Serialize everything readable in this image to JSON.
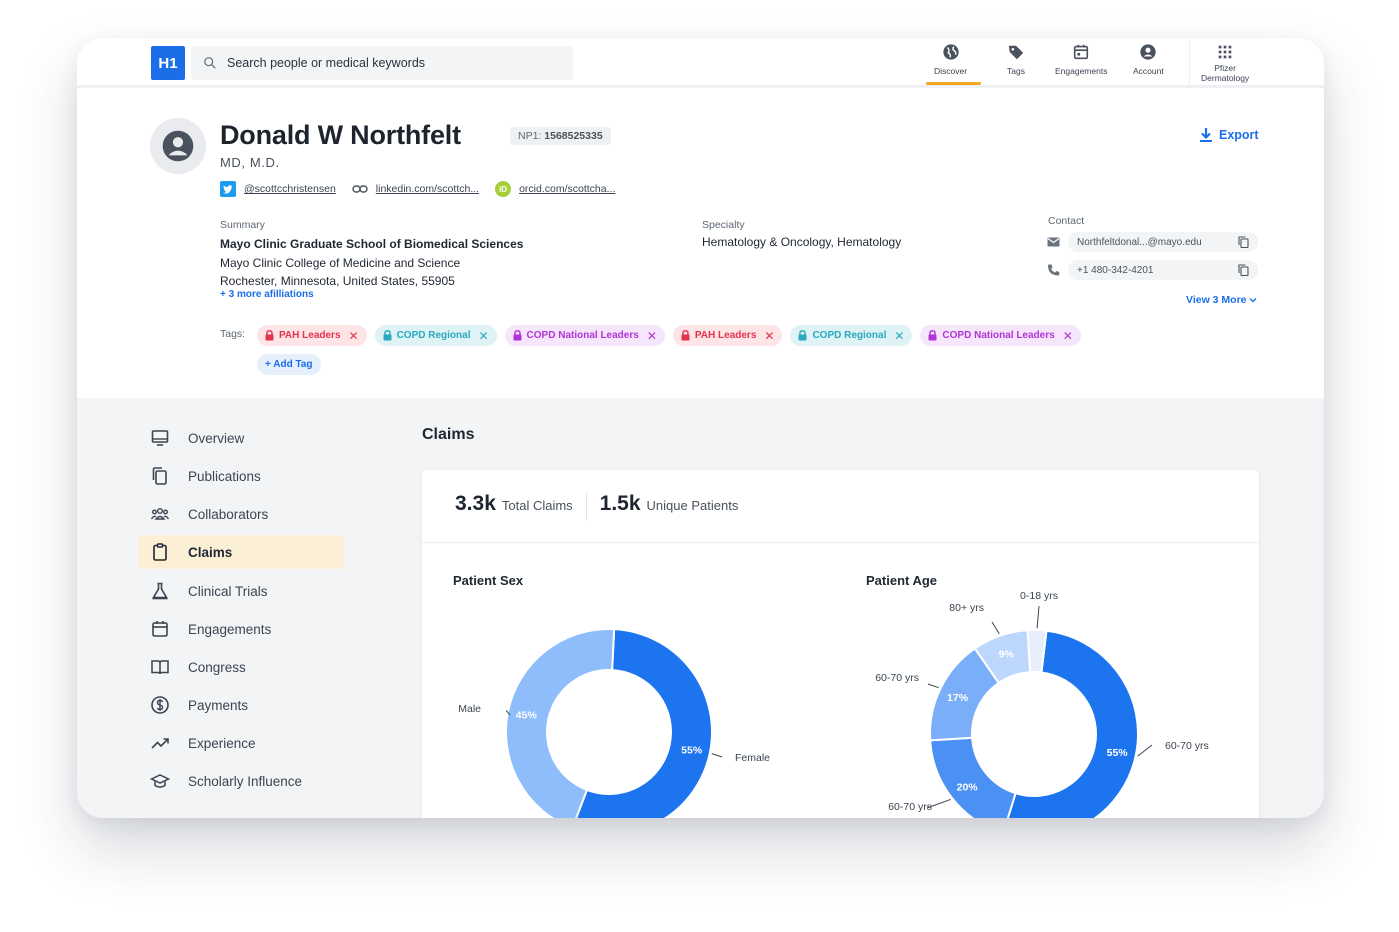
{
  "topbar": {
    "logo": "H1",
    "search_placeholder": "Search people or medical keywords",
    "nav": [
      {
        "label": "Discover",
        "icon": "globe-icon"
      },
      {
        "label": "Tags",
        "icon": "tag-icon"
      },
      {
        "label": "Engagements",
        "icon": "calendar-icon"
      },
      {
        "label": "Account",
        "icon": "account-icon"
      },
      {
        "label_line1": "Pfizer",
        "label_line2": "Dermatology",
        "icon": "apps-grid-icon"
      }
    ]
  },
  "profile": {
    "name": "Donald W Northfelt",
    "npi_prefix": "NP1:",
    "npi": "1568525335",
    "degree": "MD, M.D.",
    "export_label": "Export",
    "twitter": "@scottcchristensen",
    "linkedin": "linkedin.com/scottch...",
    "orcid": "orcid.com/scottcha...",
    "orcid_badge": "iD",
    "summary_label": "Summary",
    "summary_lines": [
      "Mayo Clinic Graduate School of Biomedical Sciences",
      "Mayo Clinic College of Medicine and Science",
      "Rochester, Minnesota, United States, 55905"
    ],
    "more_affiliations": "+ 3 more afilliations",
    "specialty_label": "Specialty",
    "specialty": "Hematology & Oncology, Hematology",
    "contact_label": "Contact",
    "email": "Northfeltdonal...@mayo.edu",
    "phone": "+1 480-342-4201",
    "view_more": "View 3 More",
    "tags_label": "Tags:",
    "tags": [
      {
        "label": "PAH Leaders",
        "color": "#e2344b"
      },
      {
        "label": "COPD Regional",
        "color": "#28a9bd"
      },
      {
        "label": "COPD National Leaders",
        "color": "#b233d6"
      },
      {
        "label": "PAH Leaders",
        "color": "#e2344b"
      },
      {
        "label": "COPD Regional",
        "color": "#28a9bd"
      },
      {
        "label": "COPD National Leaders",
        "color": "#b233d6"
      }
    ],
    "add_tag": "+ Add Tag"
  },
  "sidebar": {
    "items": [
      {
        "label": "Overview",
        "icon": "monitor-icon"
      },
      {
        "label": "Publications",
        "icon": "documents-icon"
      },
      {
        "label": "Collaborators",
        "icon": "people-icon"
      },
      {
        "label": "Claims",
        "icon": "clipboard-icon",
        "active": true
      },
      {
        "label": "Clinical Trials",
        "icon": "flask-icon"
      },
      {
        "label": "Engagements",
        "icon": "calendar-icon"
      },
      {
        "label": "Congress",
        "icon": "book-icon"
      },
      {
        "label": "Payments",
        "icon": "dollar-icon"
      },
      {
        "label": "Experience",
        "icon": "trend-icon"
      },
      {
        "label": "Scholarly Influence",
        "icon": "graduation-cap-icon"
      }
    ]
  },
  "claims": {
    "title": "Claims",
    "total_claims": "3.3k",
    "total_claims_label": "Total Claims",
    "unique_patients": "1.5k",
    "unique_patients_label": "Unique Patients"
  },
  "colors": {
    "accent": "#1c6ee8",
    "active_nav": "#f5a623"
  },
  "chart_data": [
    {
      "type": "pie",
      "title": "Patient Sex",
      "donut": true,
      "slices": [
        {
          "label": "Female",
          "value": 55,
          "display": "55%",
          "color": "#1c74ee"
        },
        {
          "label": "Male",
          "value": 45,
          "display": "45%",
          "color": "#8fbcfb"
        }
      ]
    },
    {
      "type": "pie",
      "title": "Patient Age",
      "donut": true,
      "slices": [
        {
          "label": "60-70 yrs",
          "value": 55,
          "display": "55%",
          "color": "#1c74ee"
        },
        {
          "label": "60-70 yrs",
          "value": 20,
          "display": "20%",
          "color": "#4a91f3"
        },
        {
          "label": "60-70 yrs",
          "value": 17,
          "display": "17%",
          "color": "#7aaef8"
        },
        {
          "label": "80+ yrs",
          "value": 9,
          "display": "9%",
          "color": "#bcd6fc"
        },
        {
          "label": "0-18 yrs",
          "value": 3,
          "display": "",
          "color": "#e6eefb"
        }
      ]
    }
  ]
}
